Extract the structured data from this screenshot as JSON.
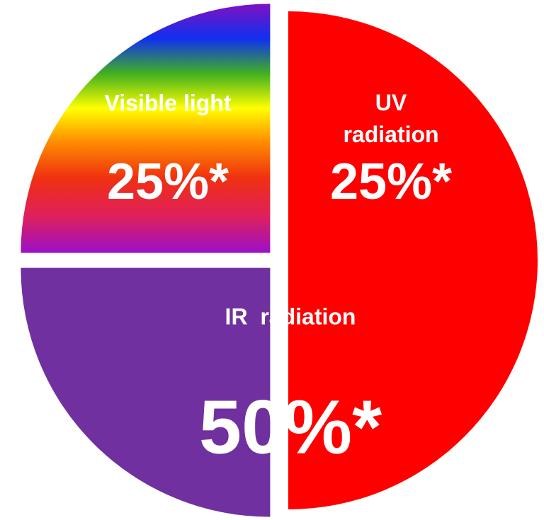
{
  "chart_data": {
    "type": "pie",
    "categories": [
      "Visible light",
      "UV radiation",
      "IR  radiation"
    ],
    "values": [
      25,
      25,
      50
    ],
    "value_labels": [
      "25%*",
      "25%*",
      "50%*"
    ],
    "colors": [
      "#ffff00",
      "#7030a0",
      "#ff0000"
    ]
  }
}
